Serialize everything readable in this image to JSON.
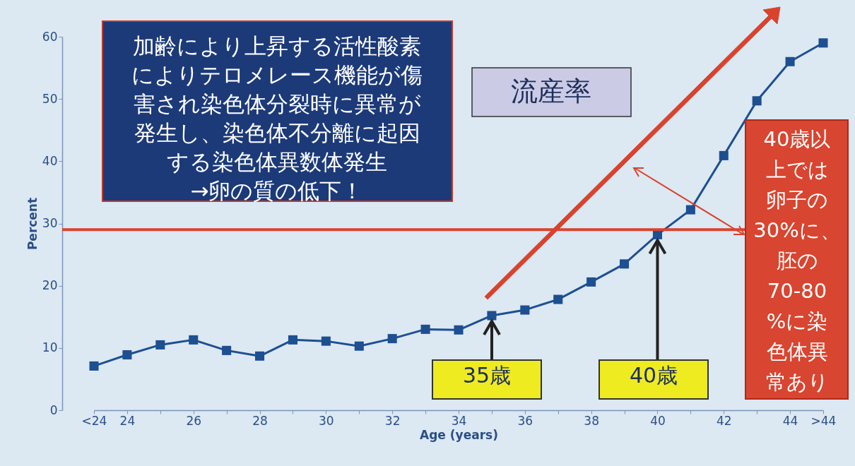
{
  "chart_data": {
    "type": "line",
    "title": "流産率",
    "xlabel": "Age (years)",
    "ylabel": "Percent",
    "categories": [
      "<24",
      "24",
      null,
      "26",
      null,
      "28",
      null,
      "30",
      null,
      "32",
      null,
      "34",
      null,
      "36",
      null,
      "38",
      null,
      "40",
      null,
      "42",
      null,
      "44",
      ">44"
    ],
    "series": [
      {
        "color": "#1d4f91",
        "values": [
          7.1,
          8.9,
          10.5,
          11.3,
          9.6,
          8.7,
          11.3,
          11.1,
          10.3,
          11.5,
          13.0,
          12.9,
          15.2,
          16.1,
          17.8,
          20.6,
          23.5,
          28.2,
          32.2,
          40.9,
          49.7,
          56.0,
          59.0
        ]
      }
    ],
    "ylim": [
      0,
      60
    ],
    "yticks": [
      0,
      10,
      20,
      30,
      40,
      50,
      60
    ],
    "grid": false,
    "marker": "square",
    "line_style": "solid",
    "ref_lines": [
      {
        "axis": "y",
        "value": 29,
        "color": "#d9432e"
      }
    ],
    "annotations": [
      "加齢により上昇する活性酸素によりテロメレース機能が傷害され染色体分裂時に異常が発生し、染色体不分離に起因する染色体異数体発生→卵の質の低下！",
      "40歳以上では卵子の30%に、胚の70-80%に染色体異常あり",
      {
        "text": "35歳",
        "y": 15.2
      },
      {
        "text": "40歳",
        "x": "40",
        "y": 28.2
      }
    ]
  }
}
